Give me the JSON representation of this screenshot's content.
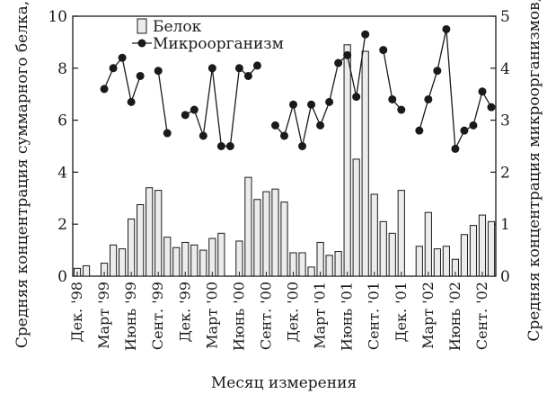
{
  "chart_data": {
    "type": "bar+line",
    "xlabel": "Месяц измерения",
    "ylabel_left": "Средняя концентрация суммарного белка, мкг/м³",
    "ylabel_right": "Средняя концентрация микроорганизмов, м³, lg",
    "ylim_left": [
      0,
      10
    ],
    "ylim_right": [
      0,
      5
    ],
    "yticks_left": [
      "0",
      "2",
      "4",
      "6",
      "8",
      "10"
    ],
    "yticks_right": [
      "0",
      "1",
      "2",
      "3",
      "4",
      "5"
    ],
    "grid": false,
    "legend_position": "top-left",
    "x_tick_labels": [
      "Дек. '98",
      "Март '99",
      "Июнь '99",
      "Сент. '99",
      "Дек. '99",
      "Март '00",
      "Июнь '00",
      "Сент. '00",
      "Дек. '00",
      "Март '01",
      "Июнь '01",
      "Сент. '01",
      "Дек. '01",
      "Март '02",
      "Июнь '02",
      "Сент. '02"
    ],
    "series": [
      {
        "name": "Белок",
        "type": "bar",
        "axis": "left",
        "values": [
          0.3,
          0.4,
          null,
          0.5,
          1.2,
          1.05,
          2.2,
          2.75,
          3.4,
          3.3,
          1.5,
          1.1,
          1.3,
          1.2,
          1.0,
          1.45,
          1.65,
          null,
          1.35,
          3.8,
          2.95,
          3.25,
          3.35,
          2.85,
          0.9,
          0.9,
          0.35,
          1.3,
          0.8,
          0.95,
          8.9,
          4.5,
          8.65,
          3.15,
          2.1,
          1.65,
          3.3,
          null,
          1.15,
          2.45,
          1.05,
          1.15,
          0.65,
          1.6,
          1.95,
          2.35,
          2.1
        ]
      },
      {
        "name": "Микроорганизм",
        "type": "line",
        "axis": "right",
        "values": [
          null,
          null,
          null,
          3.6,
          4.0,
          4.2,
          3.35,
          3.85,
          null,
          3.95,
          2.75,
          null,
          3.1,
          3.2,
          2.7,
          4.0,
          2.5,
          2.5,
          4.0,
          3.85,
          4.05,
          null,
          2.9,
          2.7,
          3.3,
          2.5,
          3.3,
          2.9,
          3.35,
          4.1,
          4.25,
          3.45,
          4.65,
          null,
          4.35,
          3.4,
          3.2,
          null,
          2.8,
          3.4,
          3.95,
          4.75,
          2.45,
          2.8,
          2.9,
          3.55,
          3.25
        ]
      }
    ]
  }
}
